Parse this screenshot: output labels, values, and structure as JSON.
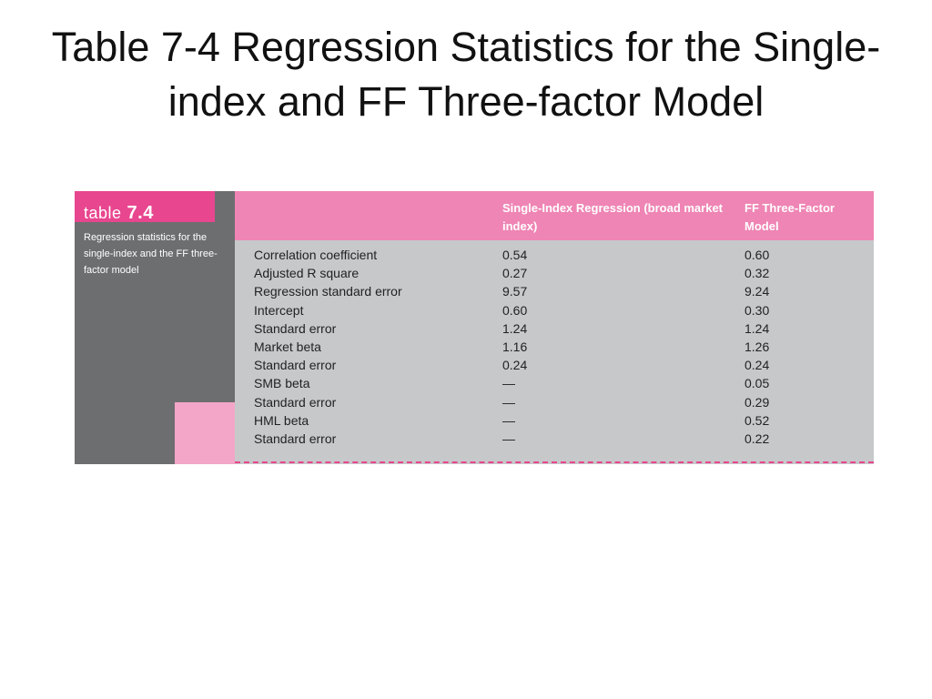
{
  "slide": {
    "title_line1": "Table 7-4 Regression Statistics for the Single-",
    "title_line2": "index and FF Three-factor Model"
  },
  "table": {
    "label_word": "table",
    "label_number": "7.4",
    "caption": "Regression statistics for the single-index and the FF three-factor model",
    "columns": [
      "",
      "Single-Index Regression (broad market index)",
      "FF Three-Factor Model"
    ],
    "rows": [
      {
        "label": "Correlation coefficient",
        "single": "0.54",
        "ff": "0.60"
      },
      {
        "label": "Adjusted R square",
        "single": "0.27",
        "ff": "0.32"
      },
      {
        "label": "Regression standard error",
        "single": "9.57",
        "ff": "9.24"
      },
      {
        "label": "Intercept",
        "single": "0.60",
        "ff": "0.30"
      },
      {
        "label": "Standard error",
        "single": "1.24",
        "ff": "1.24"
      },
      {
        "label": "Market beta",
        "single": "1.16",
        "ff": "1.26"
      },
      {
        "label": "Standard error",
        "single": "0.24",
        "ff": "0.24"
      },
      {
        "label": "SMB beta",
        "single": "—",
        "ff": "0.05"
      },
      {
        "label": "Standard error",
        "single": "—",
        "ff": "0.29"
      },
      {
        "label": "HML beta",
        "single": "—",
        "ff": "0.52"
      },
      {
        "label": "Standard error",
        "single": "—",
        "ff": "0.22"
      }
    ]
  },
  "colors": {
    "accent_pink": "#e8468f",
    "header_pink": "#ef85b4",
    "light_pink": "#f3a6c8",
    "panel_gray": "#6d6e70",
    "table_gray": "#c7c8ca"
  }
}
